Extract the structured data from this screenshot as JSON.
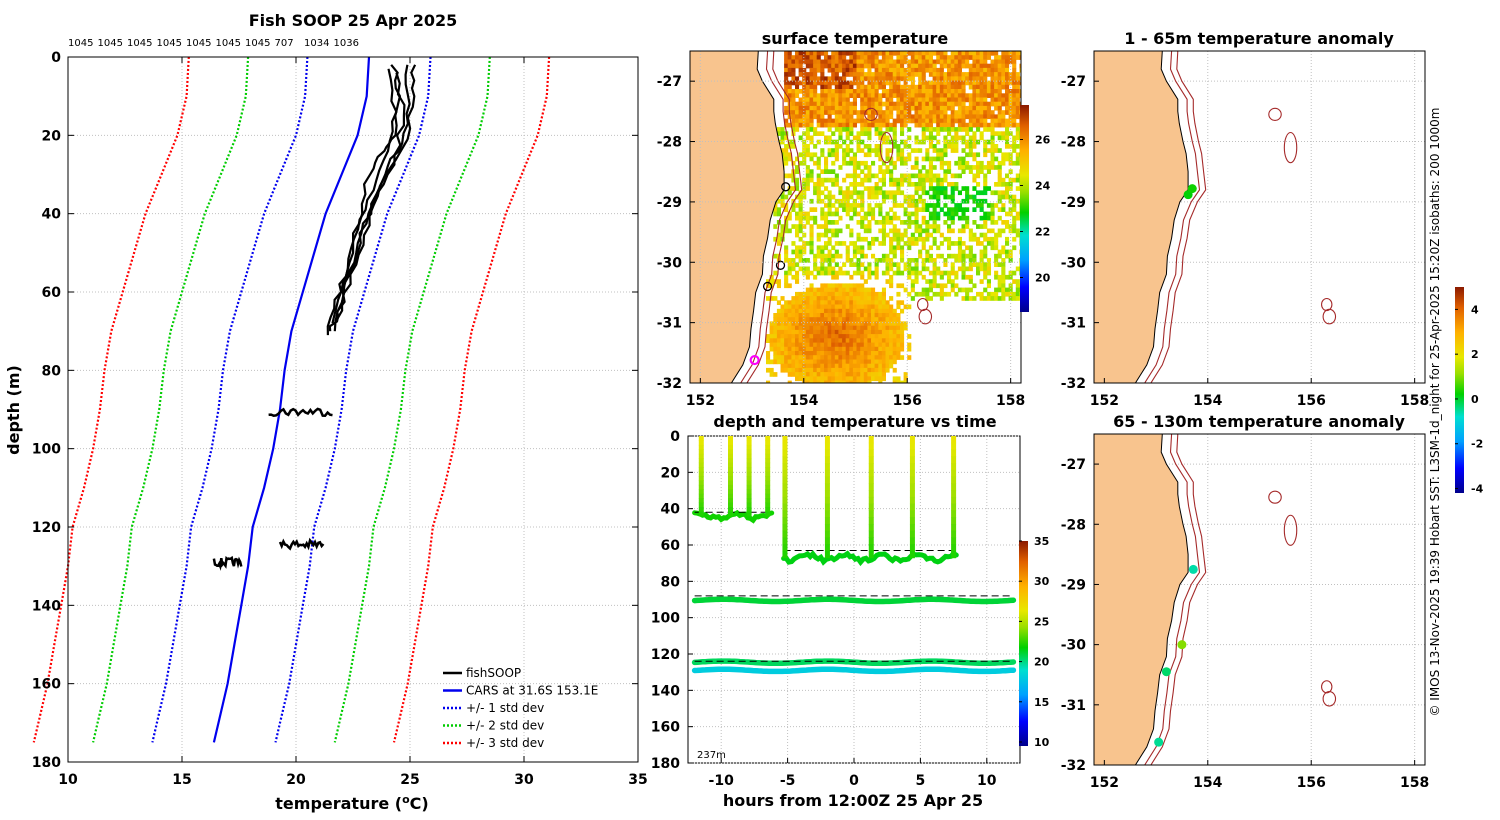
{
  "chart_data": [
    {
      "type": "line",
      "panel": "profile",
      "title": "Fish SOOP 25 Apr 2025",
      "top_counts": [
        "1045",
        "1045",
        "1045",
        "1045",
        "1045",
        "1045",
        "1045",
        "707",
        "1034",
        "1036"
      ],
      "xlabel": "temperature (",
      "xlabel_sup": "o",
      "xlabel_end": "C)",
      "ylabel": "depth (m)",
      "xlim": [
        10,
        35
      ],
      "ylim": [
        0,
        180
      ],
      "xticks": [
        "10",
        "15",
        "20",
        "25",
        "30",
        "35"
      ],
      "yticks": [
        "0",
        "20",
        "40",
        "60",
        "80",
        "100",
        "120",
        "140",
        "160",
        "180"
      ],
      "legend": {
        "position": "bottom-right",
        "entries": [
          "fishSOOP",
          "CARS at 31.6S 153.1E",
          "+/- 1 std dev",
          "+/- 2 std dev",
          "+/- 3 std dev"
        ]
      },
      "series": [
        {
          "name": "CARS at 31.6S 153.1E",
          "color": "#0000ee",
          "style": "solid",
          "depth": [
            0,
            10,
            20,
            30,
            40,
            50,
            60,
            70,
            80,
            90,
            100,
            110,
            120,
            130,
            140,
            150,
            160,
            170,
            175
          ],
          "temp": [
            23.2,
            23.1,
            22.7,
            22.0,
            21.3,
            20.8,
            20.3,
            19.8,
            19.5,
            19.3,
            19.0,
            18.6,
            18.1,
            17.9,
            17.6,
            17.3,
            17.0,
            16.6,
            16.4
          ]
        },
        {
          "name": "+/- 1 std dev",
          "color": "#0000ee",
          "style": "dotted",
          "offset": 2.7
        },
        {
          "name": "+/- 2 std dev",
          "color": "#00cc00",
          "style": "dotted",
          "offset": 5.3
        },
        {
          "name": "+/- 3 std dev",
          "color": "#ff0000",
          "style": "dotted",
          "offset": 7.9
        },
        {
          "name": "fishSOOP",
          "color": "#000000",
          "style": "solid",
          "profiles": [
            {
              "depth": [
                2,
                10,
                20,
                24,
                30,
                40,
                50,
                60,
                70
              ],
              "temp": [
                24.3,
                24.5,
                24.3,
                23.8,
                23.2,
                22.8,
                22.4,
                22.0,
                21.7
              ]
            },
            {
              "depth": [
                2,
                12,
                22,
                30,
                40,
                50,
                60,
                68
              ],
              "temp": [
                24.8,
                25.0,
                24.6,
                23.9,
                23.2,
                22.6,
                22.0,
                21.6
              ]
            },
            {
              "depth": [
                3,
                14,
                24,
                34,
                44,
                54,
                62,
                71
              ],
              "temp": [
                24.1,
                24.3,
                24.0,
                23.3,
                22.7,
                22.2,
                21.8,
                21.4
              ]
            },
            {
              "depth": [
                2,
                10,
                21,
                28,
                38,
                48,
                58,
                67
              ],
              "temp": [
                25.1,
                25.2,
                24.8,
                24.1,
                23.5,
                22.9,
                22.3,
                21.8
              ]
            },
            {
              "depth": [
                4,
                15,
                25,
                35,
                45,
                55,
                65,
                70
              ],
              "temp": [
                24.5,
                24.7,
                24.4,
                23.6,
                22.9,
                22.4,
                21.9,
                21.5
              ]
            }
          ],
          "blobs": [
            {
              "depth": 90.5,
              "tmin": 18.8,
              "tmax": 21.6
            },
            {
              "depth": 124.5,
              "tmin": 19.3,
              "tmax": 21.2
            },
            {
              "depth": 129,
              "tmin": 16.4,
              "tmax": 17.6
            }
          ]
        }
      ]
    },
    {
      "type": "heatmap",
      "panel": "surface",
      "title": "surface temperature",
      "xlim": [
        151.8,
        158.2
      ],
      "ylim": [
        -32,
        -26.5
      ],
      "xticks": [
        "152",
        "154",
        "156",
        "158"
      ],
      "yticks": [
        "-27",
        "-28",
        "-29",
        "-30",
        "-31",
        "-32"
      ],
      "colorbar": {
        "min": 18.5,
        "max": 27.5,
        "ticks": [
          "20",
          "22",
          "24",
          "26"
        ]
      },
      "sst_regions": [
        {
          "name": "north warm band",
          "lon": [
            153.6,
            158.2
          ],
          "lat": [
            -26.5,
            -27.7
          ],
          "temp": 26.2
        },
        {
          "name": "central mixed",
          "lon": [
            153.4,
            158.2
          ],
          "lat": [
            -27.7,
            -30.6
          ],
          "temp": 24.2
        },
        {
          "name": "southern warm eddy",
          "lon": [
            153.2,
            156.0
          ],
          "lat": [
            -30.2,
            -32.0
          ],
          "temp": 25.8
        }
      ],
      "track_points": [
        {
          "lon": 153.65,
          "lat": -28.75
        },
        {
          "lon": 153.55,
          "lat": -30.05
        },
        {
          "lon": 153.3,
          "lat": -30.4
        }
      ],
      "marker": {
        "lon": 153.05,
        "lat": -31.62,
        "color": "#ff00ff"
      }
    },
    {
      "type": "scatter",
      "panel": "depth-time",
      "title": "depth and temperature vs time",
      "xlabel": "hours from 12:00Z 25 Apr 25",
      "xlim": [
        -12.5,
        12.5
      ],
      "ylim": [
        0,
        180
      ],
      "xticks": [
        "-10",
        "-5",
        "0",
        "5",
        "10"
      ],
      "yticks": [
        "0",
        "20",
        "40",
        "60",
        "80",
        "100",
        "120",
        "140",
        "160",
        "180"
      ],
      "annotation": "237m",
      "colorbar": {
        "min": 9.5,
        "max": 35,
        "ticks": [
          "10",
          "15",
          "20",
          "25",
          "30",
          "35"
        ]
      },
      "bands": [
        {
          "name": "shallow deployment",
          "hours": [
            -12,
            -6.2
          ],
          "depth": 44,
          "temp": 22
        },
        {
          "name": "mid deployment",
          "hours": [
            -5.3,
            7.8
          ],
          "depth": 67,
          "temp": 21.5
        },
        {
          "name": "90m line",
          "hours": [
            -12,
            12
          ],
          "depth": 90.5,
          "temp": 21
        },
        {
          "name": "124m line",
          "hours": [
            -12,
            12
          ],
          "depth": 124.5,
          "temp": 20.5
        },
        {
          "name": "129m line",
          "hours": [
            -12,
            12
          ],
          "depth": 129,
          "temp": 18
        }
      ],
      "casts_hours": [
        -11.5,
        -9.3,
        -7.9,
        -6.5,
        -5.2,
        -2.0,
        1.3,
        4.4,
        7.5
      ]
    },
    {
      "type": "scatter",
      "panel": "anomaly-1-65",
      "title": "1 - 65m temperature anomaly",
      "xlim": [
        151.8,
        158.2
      ],
      "ylim": [
        -32,
        -26.5
      ],
      "xticks": [
        "152",
        "154",
        "156",
        "158"
      ],
      "yticks": [
        "-27",
        "-28",
        "-29",
        "-30",
        "-31",
        "-32"
      ],
      "points": [
        {
          "lon": 153.62,
          "lat": -28.88,
          "anom": 0.2
        },
        {
          "lon": 153.7,
          "lat": -28.78,
          "anom": 0.3
        }
      ]
    },
    {
      "type": "scatter",
      "panel": "anomaly-65-130",
      "title": "65 - 130m temperature anomaly",
      "xlim": [
        151.8,
        158.2
      ],
      "ylim": [
        -32,
        -26.5
      ],
      "xticks": [
        "152",
        "154",
        "156",
        "158"
      ],
      "yticks": [
        "-27",
        "-28",
        "-29",
        "-30",
        "-31",
        "-32"
      ],
      "colorbar": {
        "min": -4.2,
        "max": 5.0,
        "ticks": [
          "4",
          "2",
          "0",
          "-2",
          "-4"
        ]
      },
      "points": [
        {
          "lon": 153.72,
          "lat": -28.75,
          "anom": -0.6
        },
        {
          "lon": 153.5,
          "lat": -30.0,
          "anom": 1.0
        },
        {
          "lon": 153.2,
          "lat": -30.45,
          "anom": -0.3
        },
        {
          "lon": 153.05,
          "lat": -31.62,
          "anom": -0.5
        }
      ]
    }
  ],
  "copyright": "© IMOS 13-Nov-2025 19:39 Hobart SST: L3SM-1d_night for 25-Apr-2025 15:20Z isobaths: 200  1000m",
  "colors": {
    "land": "#f8c48e",
    "isobath": "#a52a2a",
    "grid": "#c0c0c0"
  }
}
